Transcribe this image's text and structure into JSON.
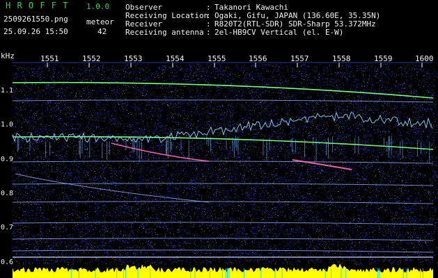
{
  "header": {
    "app_title": "H R O F F T",
    "version": "1.0.0",
    "filename": "2509261550.png",
    "detection_label": "meteor",
    "datetime": "25.09.26 15:50",
    "meteor_count": "42",
    "info_rows": [
      {
        "label": "Observer",
        "sep": ":",
        "value": "Takanori Kawachi"
      },
      {
        "label": "Receiving Location",
        "sep": ":",
        "value": "Ogaki, Gifu, JAPAN (136.60E, 35.35N)"
      },
      {
        "label": "Receiver",
        "sep": ":",
        "value": "R820T2(RTL-SDR) SDR-Sharp 53.372MHz"
      },
      {
        "label": "Receiving antenna",
        "sep": ":",
        "value": "2el-HB9CV Vertical (el. E-W)"
      }
    ]
  },
  "spectrogram": {
    "y_unit": "kHz",
    "time_ticks": [
      "1551",
      "1552",
      "1553",
      "1554",
      "1555",
      "1556",
      "1557",
      "1558",
      "1559",
      "1600"
    ],
    "freq_ticks": [
      "1.1",
      "1.0",
      "0.9",
      "0.8",
      "0.7",
      "0.6"
    ],
    "colors": {
      "background": "#000000",
      "noise": "#1e3cc8",
      "carrier_green": "#7cff7c",
      "band_line": "#a0b4ff",
      "meteor_trail": "#ff6ec7",
      "activity_bar": "#ffff00",
      "green_text": "#39d353"
    }
  }
}
